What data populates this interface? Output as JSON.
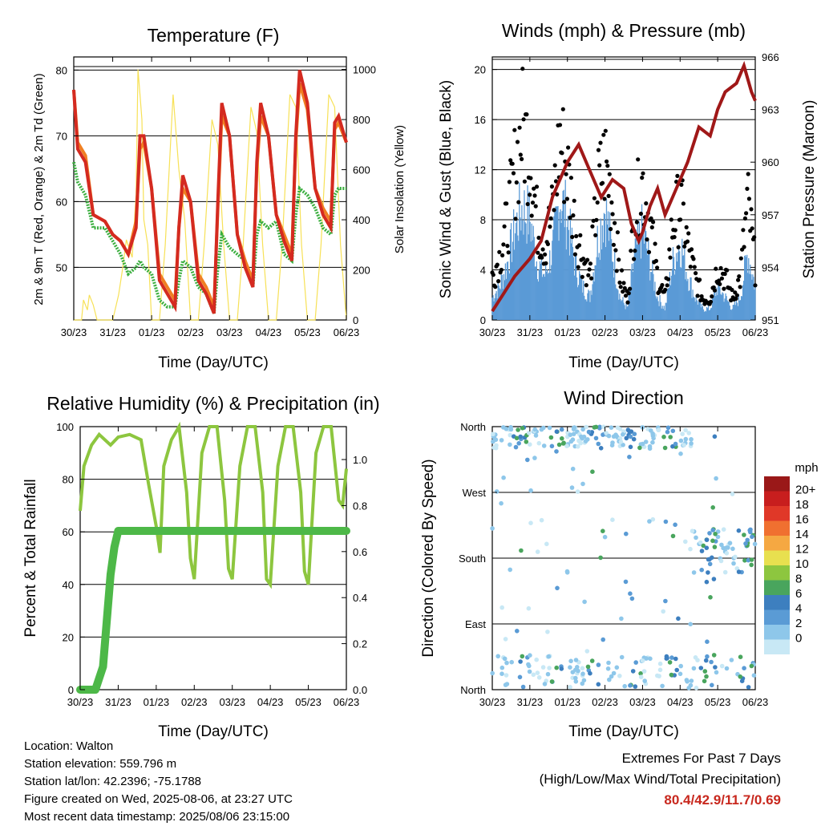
{
  "charts": {
    "temperature": {
      "title": "Temperature (F)",
      "xlabel": "Time (Day/UTC)",
      "ylabel_left": "2m & 9m T (Red, Orange) & 2m Td (Green)",
      "ylabel_right": "Solar Insolation (Yellow)"
    },
    "winds": {
      "title": "Winds (mph) & Pressure (mb)",
      "xlabel": "Time (Day/UTC)",
      "ylabel_left": "Sonic Wind & Gust (Blue, Black)",
      "ylabel_right": "Station Pressure (Maroon)"
    },
    "humidity": {
      "title": "Relative Humidity (%) & Precipitation (in)",
      "xlabel": "Time (Day/UTC)",
      "ylabel_left": "Percent & Total Rainfall"
    },
    "direction": {
      "title": "Wind Direction",
      "xlabel": "Time (Day/UTC)",
      "ylabel_left": "Direction (Colored By Speed)",
      "legend_title": "mph"
    }
  },
  "info": {
    "location": "Location: Walton",
    "elevation": "Station elevation: 559.796 m",
    "latlon": "Station lat/lon: 42.2396; -75.1788",
    "created": "Figure created on Wed, 2025-08-06, at 23:27 UTC",
    "recent": "Most recent data timestamp: 2025/08/06 23:15:00"
  },
  "extremes": {
    "line1": "Extremes For Past 7 Days",
    "line2": "(High/Low/Max Wind/Total Precipitation)",
    "values": "80.4/42.9/11.7/0.69"
  },
  "colors": {
    "temp_2m": "#d42a20",
    "temp_9m": "#f07f22",
    "dewpoint": "#3aae3e",
    "insolation": "#f7e157",
    "wind": "#5a9ad6",
    "gust": "#000000",
    "pressure": "#a01818",
    "rh": "#8dc63f",
    "precip": "#4db848"
  },
  "chart_data": [
    {
      "type": "line",
      "title": "Temperature (F)",
      "xlabel": "Time (Day/UTC)",
      "ylabel": "2m & 9m T (Red, Orange) & 2m Td (Green)",
      "y2label": "Solar Insolation (Yellow)",
      "x_ticks": [
        "30/23",
        "31/23",
        "01/23",
        "02/23",
        "03/23",
        "04/23",
        "05/23",
        "06/23"
      ],
      "ylim": [
        42,
        82
      ],
      "y_ticks": [
        50,
        60,
        70,
        80
      ],
      "y2lim": [
        0,
        1050
      ],
      "y2_ticks": [
        0,
        200,
        400,
        600,
        800,
        1000
      ],
      "grid": "horizontal",
      "series": [
        {
          "name": "2m T",
          "axis": "left",
          "x": [
            0,
            0.1,
            0.3,
            0.5,
            0.8,
            1,
            1.2,
            1.4,
            1.6,
            1.7,
            1.8,
            2,
            2.2,
            2.4,
            2.6,
            2.7,
            2.8,
            3,
            3.2,
            3.4,
            3.6,
            3.7,
            3.8,
            4,
            4.2,
            4.4,
            4.6,
            4.7,
            4.8,
            5,
            5.2,
            5.4,
            5.6,
            5.7,
            5.8,
            6,
            6.2,
            6.4,
            6.6,
            6.7,
            6.8,
            7
          ],
          "y": [
            77,
            68,
            66,
            58,
            57,
            55,
            54,
            52,
            56,
            70,
            70,
            62,
            48,
            46,
            44,
            56,
            64,
            60,
            48,
            46,
            43,
            60,
            75,
            70,
            55,
            50,
            47,
            66,
            75,
            70,
            58,
            54,
            51,
            70,
            80,
            75,
            62,
            58,
            56,
            72,
            73,
            69
          ]
        },
        {
          "name": "9m T",
          "axis": "left",
          "x": [
            0,
            0.1,
            0.3,
            0.5,
            0.8,
            1,
            1.2,
            1.4,
            1.6,
            1.7,
            1.8,
            2,
            2.2,
            2.4,
            2.6,
            2.7,
            2.8,
            3,
            3.2,
            3.4,
            3.6,
            3.7,
            3.8,
            4,
            4.2,
            4.4,
            4.6,
            4.7,
            4.8,
            5,
            5.2,
            5.4,
            5.6,
            5.7,
            5.8,
            6,
            6.2,
            6.4,
            6.6,
            6.7,
            6.8,
            7
          ],
          "y": [
            77,
            69,
            67,
            58,
            57,
            55,
            54,
            52,
            57,
            68,
            69,
            62,
            49,
            47,
            45,
            56,
            62,
            60,
            49,
            47,
            44,
            59,
            73,
            70,
            55,
            51,
            48,
            65,
            73,
            70,
            58,
            55,
            52,
            69,
            78,
            74,
            62,
            59,
            57,
            71,
            72,
            69
          ]
        },
        {
          "name": "2m Td",
          "axis": "left",
          "x": [
            0,
            0.1,
            0.3,
            0.5,
            0.8,
            1,
            1.2,
            1.4,
            1.6,
            1.7,
            1.8,
            2,
            2.2,
            2.4,
            2.6,
            2.7,
            2.8,
            3,
            3.2,
            3.4,
            3.6,
            3.7,
            3.8,
            4,
            4.2,
            4.4,
            4.6,
            4.7,
            4.8,
            5,
            5.2,
            5.4,
            5.6,
            5.7,
            5.8,
            6,
            6.2,
            6.4,
            6.6,
            6.7,
            6.8,
            7
          ],
          "y": [
            66,
            63,
            61,
            56,
            56,
            54,
            52,
            49,
            50,
            51,
            50,
            49,
            45,
            44,
            44,
            48,
            51,
            50,
            47,
            46,
            43,
            50,
            55,
            53,
            52,
            51,
            47,
            55,
            57,
            56,
            57,
            52,
            51,
            58,
            62,
            61,
            59,
            56,
            55,
            61,
            62,
            62
          ]
        },
        {
          "name": "Solar Insolation",
          "axis": "right",
          "x": [
            0.0,
            0.2,
            0.25,
            0.35,
            0.4,
            0.5,
            0.6,
            0.8,
            1.0,
            1.15,
            1.25,
            1.35,
            1.5,
            1.6,
            1.65,
            1.7,
            1.75,
            1.8,
            1.9,
            2.0,
            2.2,
            2.35,
            2.55,
            2.7,
            2.85,
            3.0,
            3.2,
            3.35,
            3.55,
            3.7,
            3.85,
            4.0,
            4.2,
            4.35,
            4.55,
            4.7,
            4.85,
            5.0,
            5.2,
            5.35,
            5.55,
            5.7,
            5.85,
            6.0,
            6.2,
            6.35,
            6.55,
            6.7,
            6.85,
            7.0
          ],
          "y": [
            0,
            0,
            80,
            40,
            100,
            60,
            0,
            0,
            0,
            100,
            200,
            320,
            250,
            500,
            1000,
            900,
            800,
            400,
            300,
            0,
            0,
            300,
            900,
            600,
            400,
            0,
            0,
            300,
            800,
            700,
            300,
            0,
            0,
            300,
            850,
            750,
            300,
            0,
            0,
            300,
            900,
            850,
            300,
            0,
            0,
            300,
            900,
            850,
            300,
            0
          ]
        }
      ]
    },
    {
      "type": "scatter",
      "title": "Winds (mph) & Pressure (mb)",
      "xlabel": "Time (Day/UTC)",
      "ylabel": "Sonic Wind & Gust (Blue, Black)",
      "y2label": "Station Pressure (Maroon)",
      "x_ticks": [
        "30/23",
        "31/23",
        "01/23",
        "02/23",
        "03/23",
        "04/23",
        "05/23",
        "06/23"
      ],
      "ylim": [
        0,
        21
      ],
      "y_ticks": [
        0,
        4,
        8,
        12,
        16,
        20
      ],
      "y2lim": [
        951,
        966
      ],
      "y2_ticks": [
        951,
        954,
        957,
        960,
        963,
        966
      ],
      "grid": "horizontal",
      "series": [
        {
          "name": "Sonic Wind",
          "axis": "left",
          "x": [
            0,
            0.2,
            0.4,
            0.6,
            0.8,
            1,
            1.2,
            1.4,
            1.6,
            1.8,
            2,
            2.2,
            2.4,
            2.6,
            2.8,
            3,
            3.2,
            3.4,
            3.6,
            3.8,
            4,
            4.2,
            4.4,
            4.6,
            4.8,
            5,
            5.2,
            5.4,
            5.6,
            5.8,
            6,
            6.2,
            6.4,
            6.6,
            6.8,
            7
          ],
          "y": [
            2,
            3,
            5,
            8,
            10,
            9,
            5,
            4,
            6,
            11,
            9,
            5,
            3,
            2,
            7,
            10,
            6,
            2,
            1,
            6,
            8,
            5,
            2,
            1,
            5,
            7,
            4,
            2,
            1,
            1,
            3,
            2,
            1,
            2,
            6,
            3
          ]
        },
        {
          "name": "Gust",
          "axis": "left",
          "x": [
            0,
            0.2,
            0.4,
            0.6,
            0.8,
            1,
            1.2,
            1.4,
            1.6,
            1.8,
            2,
            2.2,
            2.4,
            2.6,
            2.8,
            3,
            3.2,
            3.4,
            3.6,
            3.8,
            4,
            4.2,
            4.4,
            4.6,
            4.8,
            5,
            5.2,
            5.4,
            5.6,
            5.8,
            6,
            6.2,
            6.4,
            6.6,
            6.8,
            7
          ],
          "y": [
            4,
            6,
            9,
            14,
            18,
            16,
            9,
            7,
            10,
            17,
            14,
            9,
            6,
            4,
            12,
            15,
            11,
            4,
            2,
            10,
            13,
            9,
            4,
            2,
            9,
            11,
            7,
            4,
            2,
            2,
            5,
            4,
            2,
            4,
            11,
            5
          ]
        },
        {
          "name": "Station Pressure",
          "axis": "right",
          "x": [
            0,
            0.3,
            0.6,
            1.0,
            1.3,
            1.6,
            2.0,
            2.3,
            2.6,
            2.9,
            3.2,
            3.5,
            3.7,
            3.9,
            4.0,
            4.2,
            4.4,
            4.6,
            4.9,
            5.2,
            5.5,
            5.8,
            6.0,
            6.2,
            6.5,
            6.7,
            6.9,
            7.0
          ],
          "y": [
            951.5,
            952.5,
            953.5,
            954.5,
            955.5,
            958.0,
            960.0,
            961.0,
            959.5,
            958.0,
            959.0,
            958.5,
            956.5,
            955.5,
            956.0,
            957.5,
            958.5,
            957.0,
            958.5,
            960.0,
            962.0,
            961.5,
            963.0,
            964.0,
            964.5,
            965.5,
            964.0,
            963.5
          ]
        }
      ]
    },
    {
      "type": "line",
      "title": "Relative Humidity (%) & Precipitation (in)",
      "xlabel": "Time (Day/UTC)",
      "ylabel": "Percent & Total Rainfall",
      "x_ticks": [
        "30/23",
        "31/23",
        "01/23",
        "02/23",
        "03/23",
        "04/23",
        "05/23",
        "06/23"
      ],
      "ylim": [
        0,
        100
      ],
      "y_ticks": [
        0,
        20,
        40,
        60,
        80,
        100
      ],
      "y2lim": [
        0,
        1.143
      ],
      "y2_ticks": [
        0.0,
        0.2,
        0.4,
        0.6,
        0.8,
        1.0
      ],
      "grid": "horizontal",
      "series": [
        {
          "name": "Relative Humidity",
          "axis": "left",
          "x": [
            0,
            0.1,
            0.3,
            0.5,
            0.8,
            1,
            1.3,
            1.6,
            1.8,
            2,
            2.1,
            2.2,
            2.4,
            2.6,
            2.8,
            2.9,
            3.0,
            3.2,
            3.4,
            3.6,
            3.8,
            3.9,
            4.0,
            4.2,
            4.4,
            4.6,
            4.8,
            4.9,
            5.0,
            5.2,
            5.4,
            5.6,
            5.8,
            5.9,
            6.0,
            6.2,
            6.4,
            6.6,
            6.8,
            6.9,
            7.0
          ],
          "y": [
            68,
            85,
            93,
            97,
            93,
            96,
            97,
            95,
            78,
            62,
            52,
            85,
            95,
            100,
            75,
            50,
            42,
            90,
            100,
            100,
            72,
            46,
            42,
            85,
            100,
            100,
            75,
            42,
            40,
            85,
            100,
            100,
            75,
            45,
            40,
            90,
            100,
            100,
            72,
            70,
            84
          ]
        },
        {
          "name": "Precipitation",
          "axis": "right",
          "x": [
            0,
            0.4,
            0.6,
            0.7,
            0.8,
            0.9,
            1.0,
            1.5,
            7.0
          ],
          "y": [
            0,
            0,
            0.1,
            0.3,
            0.5,
            0.62,
            0.69,
            0.69,
            0.69
          ]
        }
      ]
    },
    {
      "type": "scatter",
      "title": "Wind Direction",
      "xlabel": "Time (Day/UTC)",
      "ylabel": "Direction (Colored By Speed)",
      "x_ticks": [
        "30/23",
        "31/23",
        "01/23",
        "02/23",
        "03/23",
        "04/23",
        "05/23",
        "06/23"
      ],
      "y_ticks": [
        "North",
        "East",
        "South",
        "West",
        "North"
      ],
      "ylim": [
        0,
        360
      ],
      "legend_title": "mph",
      "legend": [
        "0",
        "2",
        "4",
        "6",
        "8",
        "10",
        "12",
        "14",
        "16",
        "18",
        "20+"
      ],
      "legend_colors": [
        "#c8e8f5",
        "#8ec7ea",
        "#5a9bd5",
        "#3d7fbf",
        "#49a55d",
        "#8dc63f",
        "#e8e04f",
        "#f5a842",
        "#f07030",
        "#e03828",
        "#c81e1e",
        "#9a1818"
      ],
      "legend_placement": "right",
      "points_note": "dense clusters near North at each day and around South on 05-06"
    }
  ]
}
